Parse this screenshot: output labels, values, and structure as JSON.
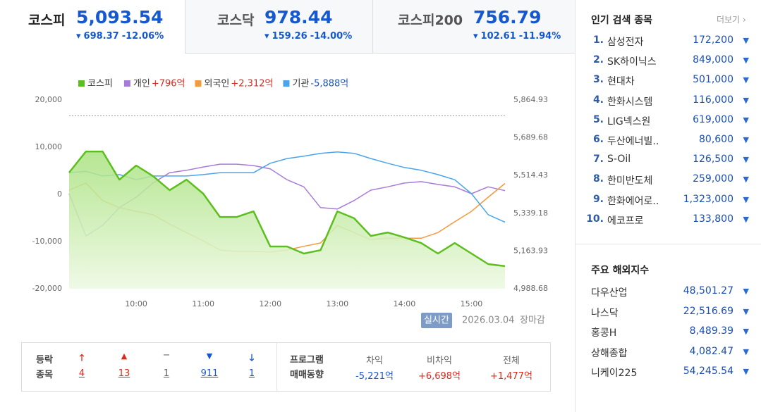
{
  "tabs": [
    {
      "name": "코스피",
      "value": "5,093.54",
      "change": "698.37",
      "rate": "-12.06%"
    },
    {
      "name": "코스닥",
      "value": "978.44",
      "change": "159.26",
      "rate": "-14.00%"
    },
    {
      "name": "코스피200",
      "value": "756.79",
      "change": "102.61",
      "rate": "-11.94%"
    }
  ],
  "chart_data": {
    "type": "line",
    "x": [
      9,
      9.25,
      9.5,
      9.75,
      10,
      10.25,
      10.5,
      10.75,
      11,
      11.25,
      11.5,
      11.75,
      12,
      12.25,
      12.5,
      12.75,
      13,
      13.25,
      13.5,
      13.75,
      14,
      14.25,
      14.5,
      14.75,
      15,
      15.25,
      15.5
    ],
    "xlim": [
      9,
      15.5
    ],
    "xticks": [
      {
        "value": 10,
        "label": "10:00"
      },
      {
        "value": 11,
        "label": "11:00"
      },
      {
        "value": 12,
        "label": "12:00"
      },
      {
        "value": 13,
        "label": "13:00"
      },
      {
        "value": 14,
        "label": "14:00"
      },
      {
        "value": 15,
        "label": "15:00"
      }
    ],
    "ylim": [
      -20000,
      20000
    ],
    "yticks": [
      {
        "value": 20000,
        "label": "20,000"
      },
      {
        "value": 10000,
        "label": "10,000"
      },
      0,
      {
        "value": -10000,
        "label": "-10,000"
      },
      {
        "value": -20000,
        "label": "-20,000"
      }
    ],
    "y2lim": [
      4988.68,
      5864.93
    ],
    "y2ticks": [
      {
        "value": 5864.93,
        "label": "5,864.93"
      },
      {
        "value": 5689.68,
        "label": "5,689.68"
      },
      {
        "value": 5514.43,
        "label": "5,514.43"
      },
      {
        "value": 5339.18,
        "label": "5,339.18"
      },
      {
        "value": 5163.93,
        "label": "5,163.93"
      },
      {
        "value": 4988.68,
        "label": "4,988.68"
      }
    ],
    "y2_reference": 5791.91,
    "series": [
      {
        "name": "코스피",
        "color": "#5cbf1e",
        "axis": "y2",
        "values": [
          5528,
          5626,
          5626,
          5495,
          5561,
          5512,
          5446,
          5495,
          5430,
          5322,
          5322,
          5348,
          5185,
          5185,
          5152,
          5168,
          5348,
          5316,
          5234,
          5250,
          5227,
          5201,
          5152,
          5201,
          5152,
          5103,
          5093.54
        ]
      },
      {
        "name": "개인",
        "net": "+796억",
        "color": "#a97bd9",
        "values": [
          150,
          -8800,
          -6570,
          -2800,
          -600,
          2400,
          4600,
          5100,
          5800,
          6400,
          6400,
          6100,
          5400,
          3100,
          1600,
          -2800,
          -3100,
          -1300,
          900,
          1600,
          2400,
          2700,
          2100,
          1600,
          150,
          1600,
          796
        ]
      },
      {
        "name": "외국인",
        "net": "+2,312억",
        "color": "#f39a3c",
        "values": [
          900,
          2400,
          -1300,
          -2800,
          -3600,
          -4300,
          -6300,
          -8100,
          -9850,
          -11800,
          -12100,
          -12100,
          -12200,
          -11800,
          -11000,
          -10300,
          -6600,
          -8100,
          -9600,
          -9300,
          -9300,
          -9300,
          -8100,
          -5800,
          -3600,
          -600,
          2312
        ]
      },
      {
        "name": "기관",
        "net": "-5,888억",
        "color": "#4ba4ea",
        "values": [
          4600,
          4900,
          3900,
          4200,
          3100,
          3900,
          3900,
          3900,
          4200,
          4600,
          4600,
          4600,
          6600,
          7600,
          8100,
          8700,
          9000,
          8700,
          7600,
          6600,
          5700,
          5100,
          4200,
          3100,
          150,
          -4300,
          -5888
        ]
      }
    ]
  },
  "status": {
    "badge": "실시간",
    "date": "2026.03.04",
    "session": "장마감"
  },
  "breadth": {
    "title": [
      "등락",
      "종목"
    ],
    "counts": [
      "4",
      "13",
      "1",
      "911",
      "1"
    ]
  },
  "program": {
    "title": [
      "프로그램",
      "매매동향"
    ],
    "columns": [
      {
        "name": "차익",
        "value": "-5,221억"
      },
      {
        "name": "비차익",
        "value": "+6,698억"
      },
      {
        "name": "전체",
        "value": "+1,477억"
      }
    ]
  },
  "popular": {
    "title": "인기 검색 종목",
    "more": "더보기",
    "items": [
      {
        "rank": "1.",
        "name": "삼성전자",
        "price": "172,200"
      },
      {
        "rank": "2.",
        "name": "SK하이닉스",
        "price": "849,000"
      },
      {
        "rank": "3.",
        "name": "현대차",
        "price": "501,000"
      },
      {
        "rank": "4.",
        "name": "한화시스템",
        "price": "116,000"
      },
      {
        "rank": "5.",
        "name": "LIG넥스원",
        "price": "619,000"
      },
      {
        "rank": "6.",
        "name": "두산에너빌..",
        "price": "80,600"
      },
      {
        "rank": "7.",
        "name": "S-Oil",
        "price": "126,500"
      },
      {
        "rank": "8.",
        "name": "한미반도체",
        "price": "259,000"
      },
      {
        "rank": "9.",
        "name": "한화에어로..",
        "price": "1,323,000"
      },
      {
        "rank": "10.",
        "name": "에코프로",
        "price": "133,800"
      }
    ]
  },
  "world": {
    "title": "주요 해외지수",
    "items": [
      {
        "name": "다우산업",
        "value": "48,501.27"
      },
      {
        "name": "나스닥",
        "value": "22,516.69"
      },
      {
        "name": "홍콩H",
        "value": "8,489.39"
      },
      {
        "name": "상해종합",
        "value": "4,082.47"
      },
      {
        "name": "니케이225",
        "value": "54,245.54"
      }
    ]
  }
}
